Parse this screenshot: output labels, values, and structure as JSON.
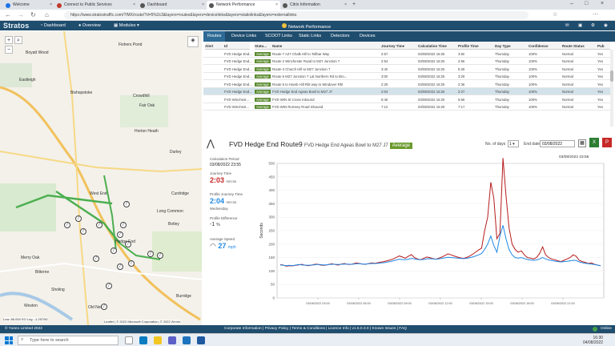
{
  "browser": {
    "tabs": [
      {
        "label": "Welcome",
        "color": "#1a73e8"
      },
      {
        "label": "Connect to Public Services",
        "color": "#c0392b"
      },
      {
        "label": "Dashboard",
        "color": "#555"
      },
      {
        "label": "Network Performance",
        "color": "#555"
      },
      {
        "label": "Citrix Information",
        "color": "#555"
      }
    ],
    "url": "https://www.stratostraffic.com/?/MX/route/?d=5%2c3&layers=routes&layers=devicelinks&layers=statiolinks&layers=externallinks"
  },
  "app": {
    "logo": "Stratos",
    "nav": [
      "Dashboard",
      "Overview",
      "Modules"
    ],
    "module_title": "Network Performance"
  },
  "map": {
    "places": [
      "Fishers Pond",
      "Boyatt Wood",
      "Eastleigh",
      "Bishopstoke",
      "Crowdhill",
      "Fair Oak",
      "Horton Heath",
      "Durley",
      "West End",
      "Hedge End",
      "Botley",
      "Long Common",
      "Curdridge",
      "Merry Oak",
      "Bitterne",
      "Sholing",
      "Weston",
      "Old Netley",
      "Burridge",
      "Fair Oak"
    ],
    "scale": "Low: 86.000 SO Lng: -1.257/50",
    "attribution": "Leaflet | © 2022 Microsoft Corporation, © 2022 Zenrin"
  },
  "tabs": [
    "Routes",
    "Device Links",
    "SCOOT Links",
    "Static Links",
    "Detectors",
    "Devices"
  ],
  "grid": {
    "headers": [
      "Alert",
      "Id",
      "Statu...",
      "Name",
      "Journey Time",
      "Calculation Time",
      "Profile Time",
      "Day Type",
      "Confidence",
      "Route Status",
      "Pub"
    ],
    "rows": [
      [
        "",
        "FVD Hedge End...",
        "Average",
        "Route 7 A27 Chalk Hill to Tollbar Way",
        "2:57",
        "03/08/2022 16:25",
        "3:50",
        "Thursday",
        "100%",
        "Normal",
        "Yes"
      ],
      [
        "",
        "FVD Hedge End...",
        "Average",
        "Route 2 Winchester Road to M27 Junction 7",
        "2:54",
        "03/08/2022 16:25",
        "2:56",
        "Thursday",
        "100%",
        "Normal",
        "Yes"
      ],
      [
        "",
        "FVD Hedge End...",
        "Average",
        "Route 3 Church Hill to M27 Junction 7",
        "3:40",
        "03/08/2022 16:25",
        "5:28",
        "Thursday",
        "100%",
        "Normal",
        "Yes"
      ],
      [
        "",
        "FVD Hedge End...",
        "Average",
        "Route 5 M27 Junction 7 Lat Northern Rd to Bro...",
        "3:00",
        "03/08/2022 16:25",
        "3:29",
        "Thursday",
        "100%",
        "Normal",
        "Yes"
      ],
      [
        "",
        "FVD Hedge End...",
        "Average",
        "Route 6 to Hamb Hill Rbt way to Windover Rbt",
        "2:29",
        "03/08/2022 16:25",
        "2:36",
        "Thursday",
        "100%",
        "Normal",
        "Yes"
      ],
      [
        "",
        "FVD Hedge End...",
        "Average",
        "FVD Hedge End Ageas Bowl to M27 J7",
        "2:04",
        "03/08/2022 16:25",
        "2:27",
        "Thursday",
        "100%",
        "Normal",
        "Yes"
      ],
      [
        "",
        "FVD Winchest...",
        "Average",
        "FVD WIN St Cross Inbound",
        "6:46",
        "03/08/2022 16:25",
        "6:56",
        "Thursday",
        "100%",
        "Normal",
        "Yes"
      ],
      [
        "",
        "FVD Winchest...",
        "Average",
        "FVD WIN Romsey Road Inbound",
        "7:12",
        "03/08/2022 16:25",
        "7:17",
        "Thursday",
        "100%",
        "Normal",
        "Yes"
      ]
    ],
    "selected_row": 5
  },
  "detail": {
    "title": "FVD Hedge End Route9",
    "subtitle": "FVD Hedge End Ageas Bowl to M27 J7",
    "status": "Average",
    "days_label": "No. of days",
    "days_value": "1",
    "end_date_label": "End date",
    "end_date_value": "03/08/2022",
    "chart_timestamp": "03/08/2022 23:55"
  },
  "stats": {
    "calc_period_label": "Calculation Period",
    "calc_period_value": "03/08/2022 23:55",
    "journey_label": "Journey Time",
    "journey_value": "2:03",
    "journey_unit": "mm:ss",
    "profile_label": "Profile Journey Time",
    "profile_value": "2:04",
    "profile_unit": "mm:ss",
    "profile_day": "Wednesday",
    "diff_label": "Profile Difference",
    "diff_value": "-1",
    "diff_unit": "%",
    "speed_label": "Average Speed",
    "speed_value": "27",
    "speed_unit": "mph",
    "journey_color": "#c62828",
    "profile_color": "#1e88e5",
    "speed_color": "#1e88e5"
  },
  "chart_data": {
    "type": "line",
    "ylabel": "Seconds",
    "ylim": [
      0,
      500
    ],
    "yticks": [
      0,
      50,
      100,
      150,
      200,
      250,
      300,
      350,
      400,
      450,
      500
    ],
    "x_tick_labels": [
      "03/08/2022 03:00",
      "03/08/2022 06:00",
      "03/08/2022 09:00",
      "03/08/2022 12:00",
      "03/08/2022 15:00",
      "03/08/2022 18:00",
      "03/08/2022 21:00"
    ],
    "series": [
      {
        "color": "#b71c1c",
        "values": [
          124,
          122,
          118,
          120,
          119,
          121,
          123,
          125,
          122,
          120,
          121,
          124,
          126,
          123,
          121,
          122,
          125,
          127,
          124,
          122,
          126,
          128,
          125,
          124,
          127,
          130,
          128,
          126,
          125,
          128,
          130,
          129,
          131,
          133,
          135,
          138,
          141,
          145,
          150,
          156,
          152,
          148,
          155,
          161,
          150,
          145,
          142,
          147,
          152,
          150,
          146,
          144,
          148,
          152,
          158,
          164,
          160,
          156,
          152,
          149,
          147,
          150,
          155,
          162,
          170,
          178,
          185,
          250,
          300,
          430,
          370,
          220,
          240,
          520,
          380,
          260,
          200,
          180,
          170,
          175,
          160,
          150,
          148,
          145,
          150,
          165,
          190,
          160,
          150,
          145,
          142,
          138,
          135,
          140,
          145,
          150,
          160,
          155,
          140,
          135,
          132,
          128,
          130,
          125,
          122,
          120
        ]
      },
      {
        "color": "#1e88e5",
        "values": [
          123,
          121,
          120,
          121,
          120,
          122,
          124,
          123,
          122,
          121,
          122,
          123,
          124,
          124,
          123,
          123,
          124,
          125,
          125,
          124,
          125,
          126,
          126,
          125,
          126,
          127,
          127,
          126,
          126,
          127,
          128,
          128,
          129,
          130,
          131,
          133,
          135,
          138,
          141,
          144,
          143,
          142,
          144,
          147,
          145,
          143,
          142,
          143,
          145,
          146,
          145,
          144,
          145,
          147,
          149,
          151,
          150,
          149,
          148,
          147,
          146,
          147,
          149,
          152,
          156,
          160,
          165,
          180,
          200,
          230,
          195,
          170,
          230,
          270,
          220,
          180,
          160,
          150,
          148,
          150,
          146,
          143,
          141,
          140,
          141,
          145,
          150,
          145,
          141,
          139,
          137,
          135,
          134,
          135,
          136,
          138,
          140,
          139,
          134,
          131,
          129,
          127,
          126,
          124,
          122,
          120
        ]
      }
    ]
  },
  "footer": {
    "copyright": "© Yunex Limited 2022",
    "links": "Corporate Information | Privacy Policy | Terms & Conditions | Licence Info | v1.5.0.3.0 | Known Issues | FAQ",
    "status": "Online"
  },
  "taskbar": {
    "search_placeholder": "Type here to search",
    "time": "16:30",
    "date": "04/08/2022"
  }
}
